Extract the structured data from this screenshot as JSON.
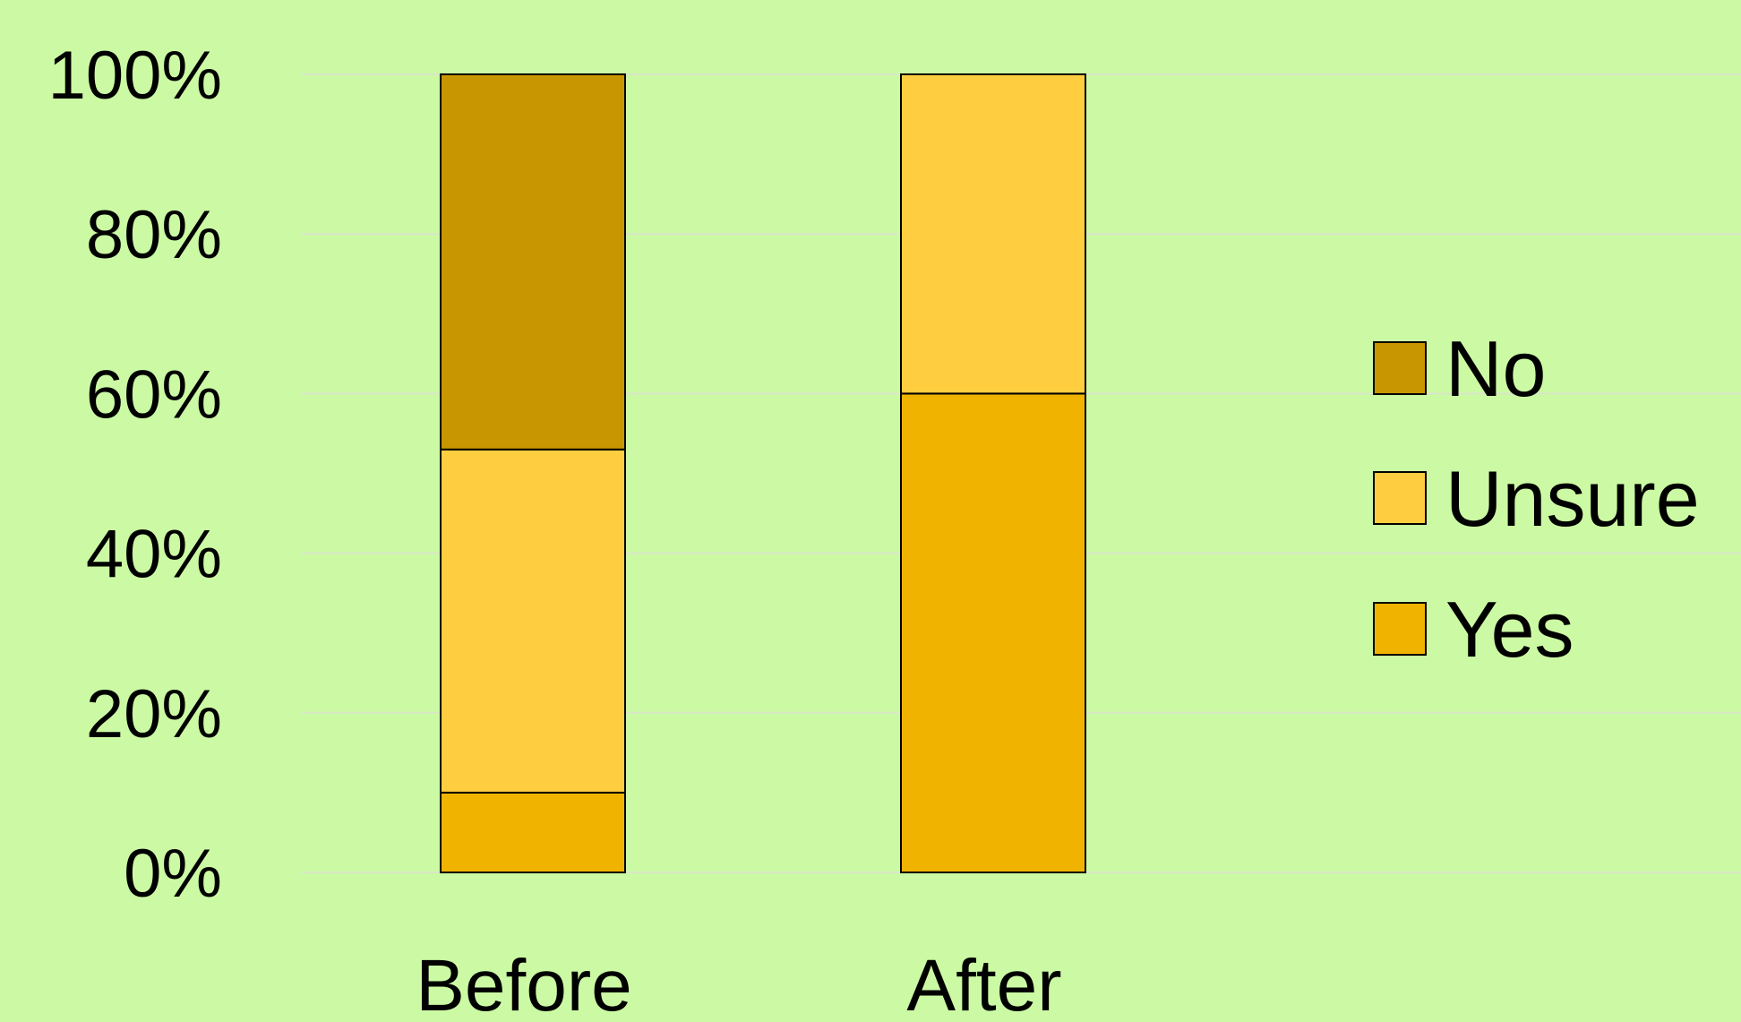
{
  "chart_data": {
    "type": "bar",
    "stacked": true,
    "percent": true,
    "title": "",
    "xlabel": "",
    "ylabel": "",
    "ylim": [
      0,
      100
    ],
    "yticks": [
      "0%",
      "20%",
      "40%",
      "60%",
      "80%",
      "100%"
    ],
    "categories": [
      "Before",
      "After"
    ],
    "series": [
      {
        "name": "Yes",
        "values": [
          10,
          60
        ],
        "color": "#F0B400"
      },
      {
        "name": "Unsure",
        "values": [
          43,
          40
        ],
        "color": "#FFCE40"
      },
      {
        "name": "No",
        "values": [
          47,
          0
        ],
        "color": "#C89600"
      }
    ],
    "legend_order": [
      "No",
      "Unsure",
      "Yes"
    ],
    "legend_position": "right",
    "grid": true,
    "background": "#CCFAA4"
  }
}
